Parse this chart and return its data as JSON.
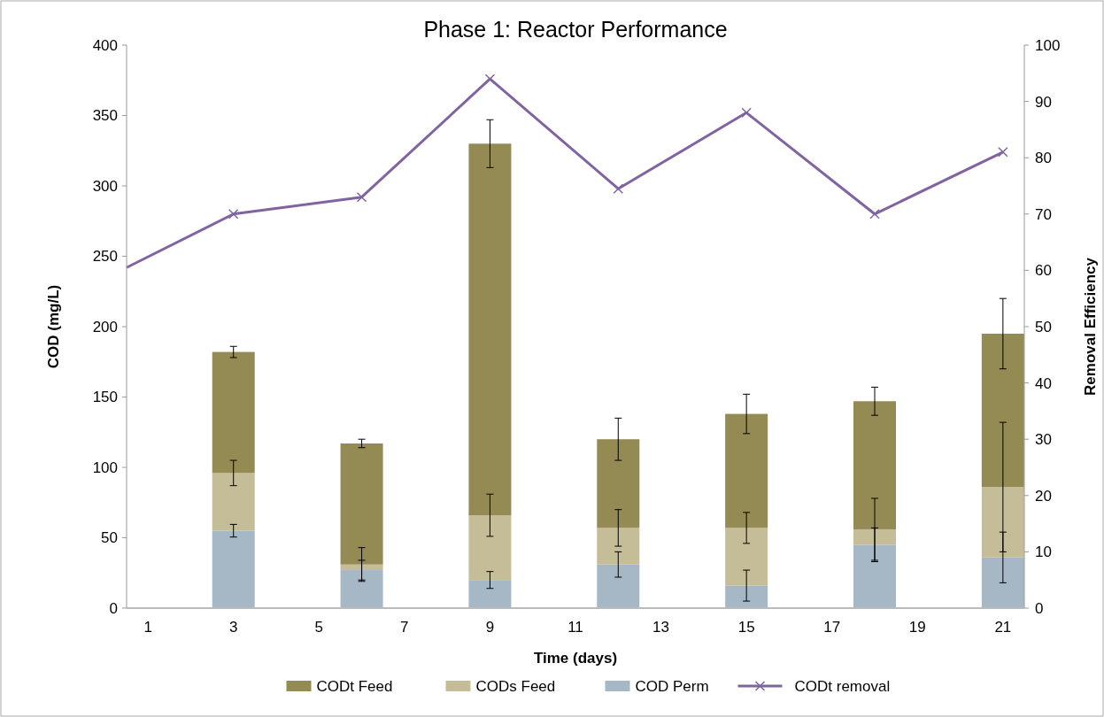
{
  "chart_data": {
    "type": "bar",
    "title": "Phase 1: Reactor Performance",
    "xlabel": "Time (days)",
    "ylabel": "COD (mg/L)",
    "y2label": "Removal Efficiency",
    "stacked": true,
    "x": [
      3,
      6,
      9,
      12,
      15,
      18,
      21
    ],
    "xlim": [
      0.5,
      21.5
    ],
    "xticks": [
      1,
      3,
      5,
      7,
      9,
      11,
      13,
      15,
      17,
      19,
      21
    ],
    "ylim": [
      0,
      400
    ],
    "yticks": [
      0,
      50,
      100,
      150,
      200,
      250,
      300,
      350,
      400
    ],
    "y2lim": [
      0,
      100
    ],
    "y2ticks": [
      0,
      10,
      20,
      30,
      40,
      50,
      60,
      70,
      80,
      90,
      100
    ],
    "grid": false,
    "legend": "bottom",
    "series": [
      {
        "name": "COD Perm",
        "color": "#a6b8c5",
        "values": [
          55,
          27,
          20,
          31,
          16,
          45,
          36
        ],
        "errors": [
          4.5,
          7,
          6,
          9,
          11,
          12,
          18
        ]
      },
      {
        "name": "CODs Feed",
        "color": "#c4bd97",
        "values": [
          41,
          4,
          46,
          26,
          41,
          11,
          50
        ],
        "errors": [
          9,
          12,
          15,
          13,
          11,
          22,
          46
        ]
      },
      {
        "name": "CODt Feed",
        "color": "#948a54",
        "values": [
          86,
          86,
          264,
          63,
          81,
          91,
          109
        ],
        "errors": [
          4,
          3,
          17,
          15,
          14,
          10,
          25
        ]
      },
      {
        "name": "CODt removal",
        "type": "line",
        "axis": "y2",
        "color": "#8064a2",
        "marker": "cross",
        "x": [
          0.5,
          3,
          6,
          9,
          12,
          15,
          18,
          21
        ],
        "values": [
          60.5,
          70,
          73,
          94,
          74.5,
          88,
          70,
          81
        ]
      }
    ]
  }
}
